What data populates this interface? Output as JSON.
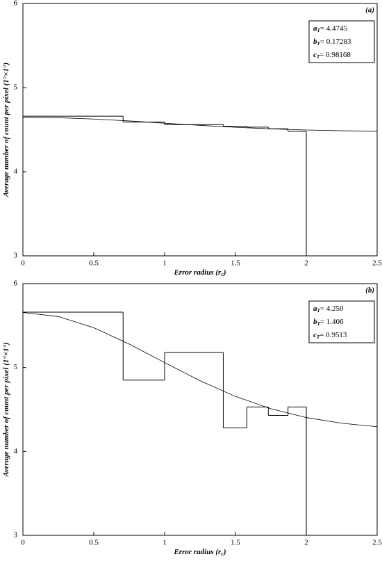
{
  "chart_data": [
    {
      "type": "histogram",
      "panel": "(a)",
      "ylabel": [
        "Average number of count per pixel (",
        "1°×1°",
        ")"
      ],
      "xlabel": [
        "Error radius (",
        "r",
        "c",
        ")"
      ],
      "xlim": [
        0,
        2.5
      ],
      "ylim": [
        3,
        6
      ],
      "xticks": [
        0,
        0.5,
        1,
        1.5,
        2,
        2.5
      ],
      "yticks": [
        3,
        4,
        5,
        6
      ],
      "bins": [
        0,
        0.707,
        1,
        1.414,
        1.581,
        1.732,
        1.871,
        2
      ],
      "counts": [
        4.66,
        4.59,
        4.56,
        4.54,
        4.53,
        4.51,
        4.48
      ],
      "curve": {
        "x": [
          0,
          0.25,
          0.5,
          0.75,
          1,
          1.25,
          1.5,
          1.75,
          2,
          2.25,
          2.5
        ],
        "values": [
          4.647,
          4.642,
          4.626,
          4.604,
          4.577,
          4.551,
          4.528,
          4.51,
          4.496,
          4.487,
          4.481
        ]
      },
      "params": [
        {
          "sym": "a",
          "sub": "T",
          "text": "= 4.4745"
        },
        {
          "sym": "b",
          "sub": "T",
          "text": "= 0.17283"
        },
        {
          "sym": "c",
          "sub": "T",
          "text": "= 0.98168"
        }
      ]
    },
    {
      "type": "histogram",
      "panel": "(b)",
      "ylabel": [
        "Average number of count per pixel (",
        "1°×1°",
        ")"
      ],
      "xlabel": [
        "Error radius (",
        "r",
        "c",
        ")"
      ],
      "xlim": [
        0,
        2.5
      ],
      "ylim": [
        3,
        6
      ],
      "xticks": [
        0,
        0.5,
        1,
        1.5,
        2,
        2.5
      ],
      "yticks": [
        3,
        4,
        5,
        6
      ],
      "bins": [
        0,
        0.707,
        1,
        1.414,
        1.581,
        1.732,
        1.871,
        2
      ],
      "counts": [
        5.66,
        4.85,
        5.18,
        4.28,
        4.53,
        4.43,
        4.53
      ],
      "curve": {
        "x": [
          0,
          0.25,
          0.5,
          0.75,
          1,
          1.25,
          1.5,
          1.75,
          2,
          2.25,
          2.5
        ],
        "values": [
          5.656,
          5.608,
          5.475,
          5.28,
          5.059,
          4.843,
          4.656,
          4.509,
          4.404,
          4.336,
          4.295
        ]
      },
      "params": [
        {
          "sym": "a",
          "sub": "T",
          "text": "= 4.250"
        },
        {
          "sym": "b",
          "sub": "T",
          "text": "= 1.406"
        },
        {
          "sym": "c",
          "sub": "T",
          "text": "= 0.9513"
        }
      ]
    }
  ]
}
